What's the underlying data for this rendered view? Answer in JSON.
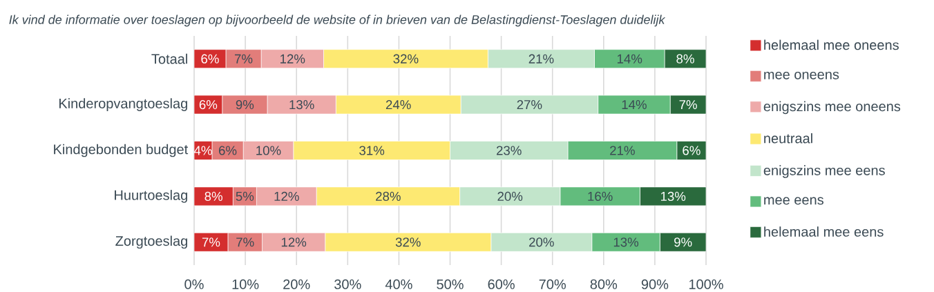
{
  "chart_data": {
    "type": "bar",
    "orientation": "horizontal",
    "stacked": true,
    "title": "Ik vind de informatie over toeslagen op bijvoorbeeld de website of in brieven van de Belastingdienst-Toeslagen duidelijk",
    "categories": [
      "Totaal",
      "Kinderopvangtoeslag",
      "Kindgebonden budget",
      "Huurtoeslag",
      "Zorgtoeslag"
    ],
    "series": [
      {
        "name": "helemaal mee oneens",
        "color": "#d42e2e",
        "values": [
          6.2,
          5.5,
          3.5,
          7.6,
          6.6
        ],
        "value_labels": [
          "6%",
          "6%",
          "4%",
          "8%",
          "7%"
        ]
      },
      {
        "name": "mee oneens",
        "color": "#e27d7a",
        "values": [
          6.9,
          8.8,
          6.1,
          4.6,
          6.7
        ],
        "value_labels": [
          "7%",
          "9%",
          "6%",
          "5%",
          "7%"
        ]
      },
      {
        "name": "enigszins mee oneens",
        "color": "#eeaaa9",
        "values": [
          12.2,
          13.4,
          9.8,
          11.7,
          12.3
        ],
        "value_labels": [
          "12%",
          "13%",
          "10%",
          "12%",
          "12%"
        ]
      },
      {
        "name": "neutraal",
        "color": "#fde972",
        "values": [
          32.1,
          24.4,
          30.6,
          28.0,
          32.4
        ],
        "value_labels": [
          "32%",
          "24%",
          "31%",
          "28%",
          "32%"
        ]
      },
      {
        "name": "enigszins mee eens",
        "color": "#c2e5cb",
        "values": [
          20.8,
          26.8,
          23.0,
          19.6,
          19.7
        ],
        "value_labels": [
          "21%",
          "27%",
          "23%",
          "20%",
          "20%"
        ]
      },
      {
        "name": "mee eens",
        "color": "#62bc7d",
        "values": [
          13.7,
          14.1,
          21.3,
          15.6,
          13.3
        ],
        "value_labels": [
          "14%",
          "14%",
          "21%",
          "16%",
          "13%"
        ]
      },
      {
        "name": "helemaal mee eens",
        "color": "#2a6a3d",
        "values": [
          8.1,
          7.0,
          5.7,
          12.9,
          9.0
        ],
        "value_labels": [
          "8%",
          "7%",
          "6%",
          "13%",
          "9%"
        ]
      }
    ],
    "xlim": [
      0,
      100
    ],
    "xticks": [
      {
        "value": 0,
        "label": "0%"
      },
      {
        "value": 10,
        "label": "10%"
      },
      {
        "value": 20,
        "label": "20%"
      },
      {
        "value": 30,
        "label": "30%"
      },
      {
        "value": 40,
        "label": "40%"
      },
      {
        "value": 50,
        "label": "50%"
      },
      {
        "value": 60,
        "label": "60%"
      },
      {
        "value": 70,
        "label": "70%"
      },
      {
        "value": 80,
        "label": "80%"
      },
      {
        "value": 90,
        "label": "90%"
      },
      {
        "value": 100,
        "label": "100%"
      }
    ],
    "grid": "x",
    "legend": "right"
  }
}
